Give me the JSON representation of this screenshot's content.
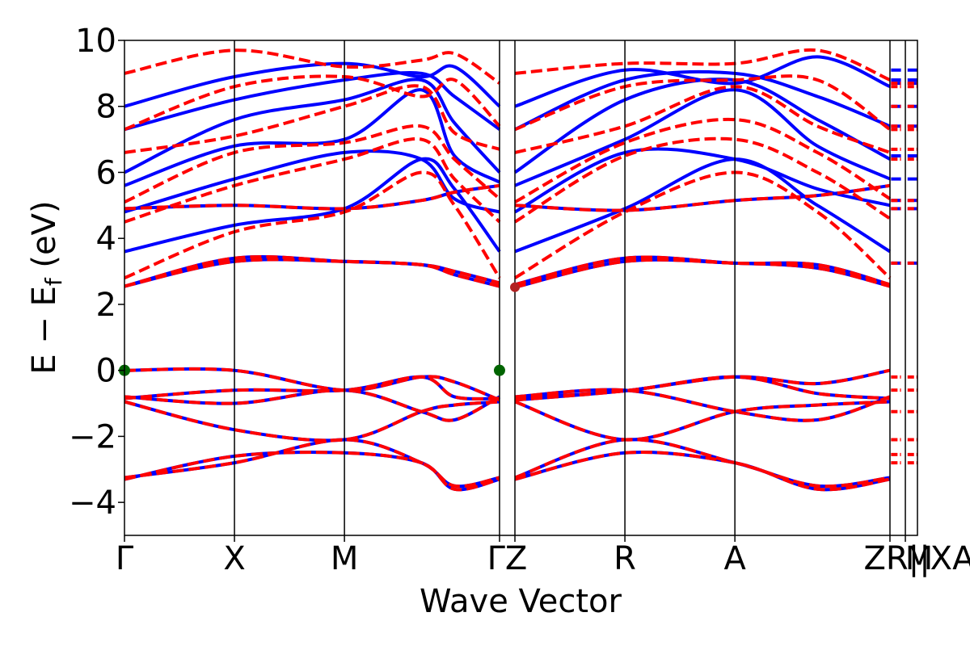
{
  "chart_data": {
    "type": "line",
    "title": "",
    "xlabel": "Wave Vector",
    "ylabel_main": "E − E",
    "ylabel_sub": "f",
    "ylabel_tail": " (eV)",
    "ylim": [
      -5,
      10
    ],
    "yticks": [
      -4,
      -2,
      0,
      2,
      4,
      6,
      8,
      10
    ],
    "ytick_labels": [
      "−4",
      "−2",
      "0",
      "2",
      "4",
      "6",
      "8",
      "10"
    ],
    "x_range": [
      0,
      7.21
    ],
    "kpoints": [
      {
        "label": "Γ",
        "x": 0.0
      },
      {
        "label": "X",
        "x": 1.0
      },
      {
        "label": "M",
        "x": 2.0
      },
      {
        "label": "Γ",
        "x": 3.41
      },
      {
        "label": "Z",
        "x": 3.55
      },
      {
        "label": "R",
        "x": 4.55
      },
      {
        "label": "A",
        "x": 5.55
      },
      {
        "label": "Z",
        "x": 6.96
      },
      {
        "label": "R",
        "x": 6.96
      },
      {
        "label": "|",
        "x": 7.06
      },
      {
        "label": "|",
        "x": 7.11
      },
      {
        "label": "X",
        "x": 7.11
      },
      {
        "label": "A",
        "x": 7.11
      },
      {
        "label": "M",
        "x": 7.21
      }
    ],
    "tick_labels": [
      {
        "text": "Γ",
        "x": 0.0
      },
      {
        "text": "X",
        "x": 1.0
      },
      {
        "text": "M",
        "x": 2.0
      },
      {
        "text": "ΓZ",
        "x": 3.48
      },
      {
        "text": "R",
        "x": 4.55
      },
      {
        "text": "A",
        "x": 5.55
      },
      {
        "text": "ZR||XA",
        "x": 7.02
      },
      {
        "text": "M",
        "x": 7.21
      }
    ],
    "vlines": [
      1.0,
      2.0,
      3.41,
      3.55,
      4.55,
      5.55,
      6.96,
      7.1
    ],
    "series_colors": {
      "spin_up": "#0000ff",
      "spin_down": "#ff0000"
    },
    "vbm": {
      "x": [
        0.0,
        3.41
      ],
      "y": 0.0,
      "color": "#006400"
    },
    "cbm": {
      "x": 3.55,
      "y": 2.52,
      "color": "#b22222"
    },
    "valence_bands": [
      [
        0.0,
        0.0,
        -0.6,
        -0.2,
        -0.35,
        -0.9,
        -0.9,
        -0.62,
        -0.2,
        -0.4,
        -0.0
      ],
      [
        -0.85,
        -0.6,
        -0.6,
        -0.2,
        -0.8,
        -0.85,
        -0.85,
        -0.62,
        -0.2,
        -0.7,
        -0.85
      ],
      [
        -0.8,
        -1.0,
        -0.6,
        -1.25,
        -1.5,
        -0.8,
        -0.8,
        -0.6,
        -1.25,
        -1.5,
        -0.8
      ],
      [
        -0.95,
        -1.8,
        -2.1,
        -1.25,
        -1.05,
        -0.95,
        -0.95,
        -2.1,
        -1.25,
        -1.05,
        -0.95
      ],
      [
        -3.3,
        -2.6,
        -2.5,
        -2.8,
        -3.6,
        -3.3,
        -3.3,
        -2.5,
        -2.8,
        -3.6,
        -3.3
      ],
      [
        -3.25,
        -2.8,
        -2.1,
        -2.8,
        -3.5,
        -3.25,
        -3.25,
        -2.1,
        -2.8,
        -3.5,
        -3.25
      ]
    ],
    "conduction_bands_shared": [
      [
        2.55,
        3.4,
        3.3,
        3.2,
        2.9,
        2.55,
        2.52,
        3.3,
        3.25,
        3.1,
        2.55
      ],
      [
        2.55,
        3.3,
        3.3,
        3.2,
        3.0,
        2.65,
        2.6,
        3.4,
        3.25,
        3.2,
        2.6
      ],
      [
        4.9,
        5.0,
        4.9,
        5.15,
        5.4,
        5.6,
        5.0,
        4.85,
        5.15,
        5.3,
        5.6
      ]
    ],
    "up_bands": [
      [
        3.6,
        4.4,
        4.9,
        6.4,
        5.5,
        3.6,
        3.6,
        4.9,
        6.4,
        5.0,
        3.6
      ],
      [
        4.8,
        5.8,
        6.6,
        6.4,
        5.2,
        4.8,
        4.8,
        6.6,
        6.4,
        5.5,
        5.0
      ],
      [
        5.6,
        6.8,
        7.0,
        8.5,
        6.5,
        5.7,
        5.6,
        7.0,
        8.5,
        6.8,
        5.8
      ],
      [
        6.0,
        7.6,
        8.2,
        8.8,
        7.5,
        6.0,
        6.0,
        8.2,
        8.8,
        7.6,
        6.4
      ],
      [
        7.3,
        8.2,
        8.8,
        9.0,
        8.3,
        7.3,
        7.3,
        8.8,
        9.0,
        8.3,
        7.4
      ],
      [
        8.0,
        8.9,
        9.3,
        8.9,
        9.2,
        8.0,
        8.0,
        9.1,
        8.7,
        9.5,
        8.6
      ]
    ],
    "down_bands": [
      [
        2.8,
        4.2,
        4.8,
        6.0,
        5.0,
        2.8,
        2.8,
        4.8,
        6.0,
        4.8,
        2.8
      ],
      [
        4.5,
        5.6,
        6.4,
        7.0,
        5.8,
        4.5,
        4.5,
        6.5,
        7.0,
        6.0,
        4.6
      ],
      [
        5.1,
        6.6,
        6.9,
        7.4,
        6.4,
        5.2,
        5.1,
        6.9,
        7.6,
        6.6,
        5.2
      ],
      [
        6.6,
        7.1,
        8.0,
        8.6,
        7.2,
        6.7,
        6.6,
        7.4,
        8.6,
        7.4,
        6.6
      ],
      [
        7.3,
        8.6,
        8.9,
        8.3,
        8.8,
        7.4,
        7.3,
        8.6,
        8.8,
        8.8,
        7.3
      ],
      [
        9.0,
        9.7,
        9.2,
        9.4,
        9.6,
        8.7,
        9.0,
        9.3,
        9.3,
        9.7,
        8.8
      ]
    ],
    "end_segment_levels_up": [
      9.1,
      8.8,
      8.7,
      8.0,
      7.4,
      6.5,
      5.8,
      5.15,
      4.9,
      3.25
    ],
    "end_segment_levels_down": [
      8.7,
      8.6,
      8.0,
      7.4,
      7.3,
      6.7,
      6.4,
      5.15,
      4.9,
      3.25,
      -0.2,
      -0.6,
      -1.25,
      -2.1,
      -2.55,
      -2.8
    ]
  }
}
